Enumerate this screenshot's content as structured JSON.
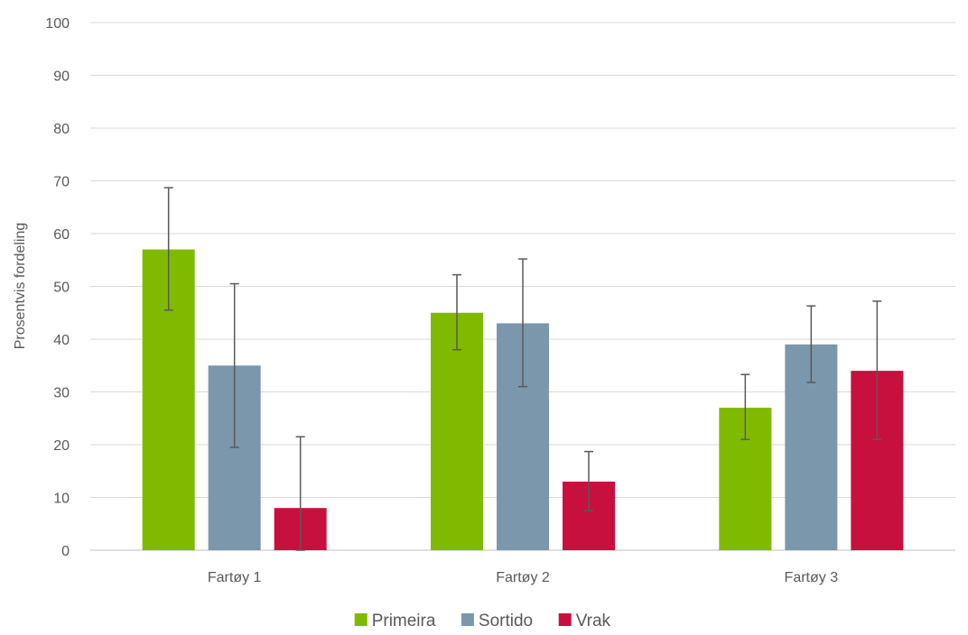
{
  "chart_data": {
    "type": "bar",
    "title": "",
    "xlabel": "",
    "ylabel": "Prosentvis fordeling",
    "ylim": [
      0,
      100
    ],
    "yticks": [
      0,
      10,
      20,
      30,
      40,
      50,
      60,
      70,
      80,
      90,
      100
    ],
    "categories": [
      "Fartøy 1",
      "Fartøy 2",
      "Fartøy 3"
    ],
    "series": [
      {
        "name": "Primeira",
        "color": "#7FBA00",
        "values": [
          57,
          45,
          27
        ],
        "err_low": [
          45.5,
          38,
          21
        ],
        "err_high": [
          68.7,
          52.2,
          33.3
        ]
      },
      {
        "name": "Sortido",
        "color": "#7A97AC",
        "values": [
          35,
          43,
          39
        ],
        "err_low": [
          19.5,
          31,
          31.8
        ],
        "err_high": [
          50.5,
          55.2,
          46.3
        ]
      },
      {
        "name": "Vrak",
        "color": "#C8103E",
        "values": [
          8,
          13,
          34
        ],
        "err_low": [
          0,
          7.5,
          21
        ],
        "err_high": [
          21.5,
          18.7,
          47.2
        ]
      }
    ],
    "grid": true,
    "legend_position": "bottom"
  }
}
